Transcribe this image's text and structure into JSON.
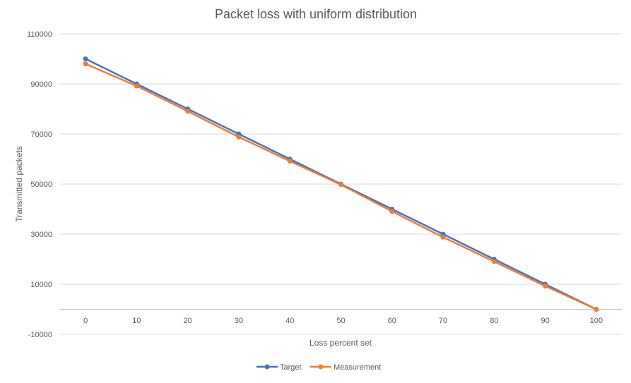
{
  "chart_data": {
    "type": "line",
    "title": "Packet loss with uniform distribution",
    "xlabel": "Loss percent set",
    "ylabel": "Transmitted packets",
    "categories": [
      "0",
      "10",
      "20",
      "30",
      "40",
      "50",
      "60",
      "70",
      "80",
      "90",
      "100"
    ],
    "y_ticks": [
      "110000",
      "90000",
      "70000",
      "50000",
      "30000",
      "10000",
      "-10000"
    ],
    "ylim": [
      -10000,
      110000
    ],
    "grid": true,
    "legend_position": "bottom",
    "series": [
      {
        "name": "Target",
        "color": "#4472C4",
        "values": [
          100000,
          90000,
          80000,
          70000,
          60000,
          50000,
          40000,
          30000,
          20000,
          10000,
          0
        ]
      },
      {
        "name": "Measurement",
        "color": "#ED7D31",
        "values": [
          98000,
          89200,
          79100,
          68800,
          59200,
          49800,
          39100,
          28800,
          19100,
          9300,
          0
        ]
      }
    ]
  }
}
